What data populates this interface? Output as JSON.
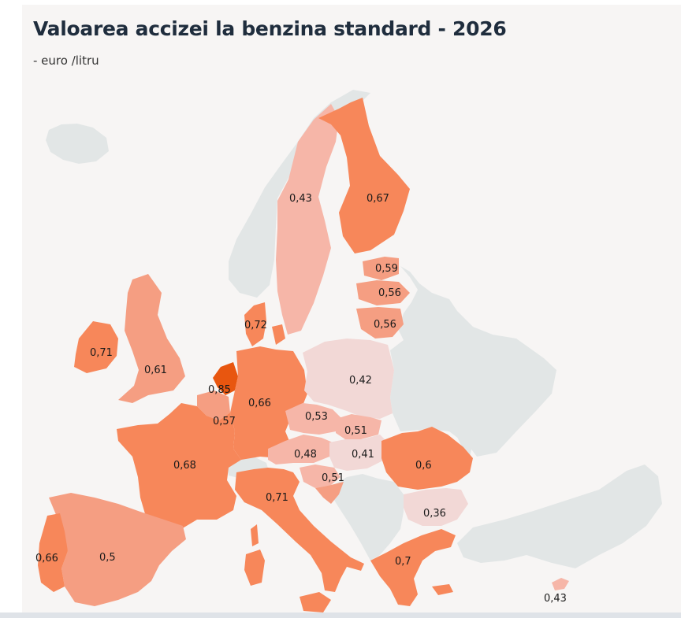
{
  "title": "Valoarea accizei la benzina standard - 2026",
  "subtitle": "- euro /litru",
  "colors": {
    "background": "#f7f5f4",
    "no_data": "#e2e6e6",
    "scale": [
      "#f2d8d6",
      "#f6b6a8",
      "#f59e82",
      "#f7875a",
      "#f26d3b"
    ],
    "highlight": "#e8560f"
  },
  "regions": [
    {
      "name": "Norway",
      "value": null
    },
    {
      "name": "Iceland",
      "value": null
    },
    {
      "name": "Sweden",
      "value": "0,43"
    },
    {
      "name": "Finland",
      "value": "0,67"
    },
    {
      "name": "Estonia",
      "value": "0,59"
    },
    {
      "name": "Latvia",
      "value": "0,56"
    },
    {
      "name": "Lithuania",
      "value": "0,56"
    },
    {
      "name": "Denmark",
      "value": "0,72"
    },
    {
      "name": "Ireland",
      "value": "0,71"
    },
    {
      "name": "United Kingdom",
      "value": "0,61"
    },
    {
      "name": "Netherlands",
      "value": "0,85"
    },
    {
      "name": "Belgium",
      "value": "0,57"
    },
    {
      "name": "Germany",
      "value": "0,66"
    },
    {
      "name": "Poland",
      "value": "0,42"
    },
    {
      "name": "Czechia",
      "value": "0,53"
    },
    {
      "name": "Slovakia",
      "value": "0,51"
    },
    {
      "name": "Austria",
      "value": "0,48"
    },
    {
      "name": "Hungary",
      "value": "0,41"
    },
    {
      "name": "Slovenia",
      "value": "0,51"
    },
    {
      "name": "Romania",
      "value": "0,6"
    },
    {
      "name": "Bulgaria",
      "value": "0,36"
    },
    {
      "name": "France",
      "value": "0,68"
    },
    {
      "name": "Italy",
      "value": "0,71"
    },
    {
      "name": "Spain",
      "value": "0,5"
    },
    {
      "name": "Portugal",
      "value": "0,66"
    },
    {
      "name": "Greece",
      "value": "0,7"
    },
    {
      "name": "Cyprus",
      "value": "0,43"
    }
  ]
}
